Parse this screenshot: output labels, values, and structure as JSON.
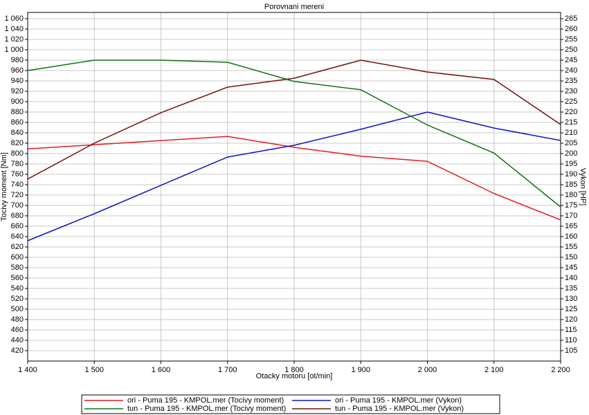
{
  "chart_data": {
    "type": "line",
    "title": "Porovnani mereni",
    "xlabel": "Otacky motoru [ot/min]",
    "ylabel": "Tocivy moment [Nm]",
    "y2label": "Vykon [HP]",
    "x": [
      1400,
      1500,
      1600,
      1700,
      1800,
      1900,
      2000,
      2100,
      2200
    ],
    "xlim": [
      1400,
      2200
    ],
    "xticks": [
      {
        "value": 1400,
        "label": "1 400"
      },
      {
        "value": 1500,
        "label": "1 500"
      },
      {
        "value": 1600,
        "label": "1 600"
      },
      {
        "value": 1700,
        "label": "1 700"
      },
      {
        "value": 1800,
        "label": "1 800"
      },
      {
        "value": 1900,
        "label": "1 900"
      },
      {
        "value": 2000,
        "label": "2 000"
      },
      {
        "value": 2100,
        "label": "2 100"
      },
      {
        "value": 2200,
        "label": "2 200"
      }
    ],
    "ylim": [
      400,
      1072
    ],
    "yticks": [
      420,
      440,
      460,
      480,
      500,
      520,
      540,
      560,
      580,
      600,
      620,
      640,
      660,
      680,
      700,
      720,
      740,
      760,
      780,
      800,
      820,
      840,
      860,
      880,
      900,
      920,
      940,
      960,
      980,
      {
        "value": 1000,
        "label": "1 000"
      },
      {
        "value": 1020,
        "label": "1 020"
      },
      {
        "value": 1040,
        "label": "1 040"
      },
      {
        "value": 1060,
        "label": "1 060"
      }
    ],
    "y2lim": [
      100,
      268
    ],
    "y2ticks": [
      105,
      110,
      115,
      120,
      125,
      130,
      135,
      140,
      145,
      150,
      155,
      160,
      165,
      170,
      175,
      180,
      185,
      190,
      195,
      200,
      205,
      210,
      215,
      220,
      225,
      230,
      235,
      240,
      245,
      250,
      255,
      260,
      265
    ],
    "grid": true,
    "series": [
      {
        "name": "ori - Puma 195 - KMPOL.mer  (Tocivy moment)",
        "color": "#e31a1c",
        "values": [
          809,
          817,
          825,
          833,
          812,
          795,
          785,
          723,
          672
        ]
      },
      {
        "name": "ori - Puma 195 - KMPOL.mer  (Vykon)",
        "color": "#1010c0",
        "axis": "y2",
        "values": [
          158,
          171,
          184.7,
          198.3,
          204,
          211.7,
          220,
          212.3,
          206.3
        ]
      },
      {
        "name": "tun - Puma 195 - KMPOL.mer  (Tocivy moment)",
        "color": "#107010",
        "values": [
          960,
          980,
          980,
          976,
          939,
          923,
          855,
          801,
          697
        ]
      },
      {
        "name": "tun - Puma 195 - KMPOL.mer  (Vykon)",
        "color": "#701010",
        "axis": "y2",
        "values": [
          187.7,
          205,
          219.7,
          232,
          236.3,
          245,
          239.3,
          235.7,
          214
        ]
      }
    ]
  }
}
